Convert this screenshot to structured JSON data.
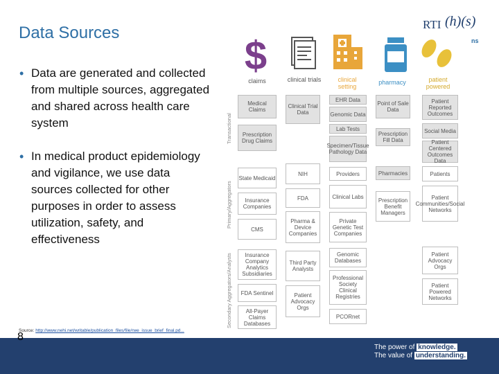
{
  "slide": {
    "title": "Data Sources",
    "logo": {
      "rti": "RTI",
      "hs": "(h)(s)",
      "suffix": "ns"
    },
    "bullets": [
      "Data are generated and collected from multiple sources, aggregated and shared across health care system",
      "In medical product epidemiology and vigilance, we use data sources collected for other purposes in order to assess utilization, safety, and effectiveness"
    ],
    "source_label": "Source:",
    "source_link": "http://www.nehi.net/writable/publication_files/file/rwe_issue_brief_final.pd...",
    "page_number": "8",
    "tagline": {
      "line1_prefix": "The power of",
      "line1_bold": "knowledge.",
      "line2_prefix": "The value of",
      "line2_bold": "understanding."
    }
  },
  "diagram": {
    "columns": [
      {
        "label": "claims",
        "icon": "dollar-icon",
        "color": "#7b3f8c"
      },
      {
        "label": "clinical trials",
        "icon": "document-icon",
        "color": "#555555"
      },
      {
        "label": "clinical setting",
        "icon": "hospital-icon",
        "color": "#e8a63a"
      },
      {
        "label": "pharmacy",
        "icon": "pill-bottle-icon",
        "color": "#3c8fc4"
      },
      {
        "label": "patient powered",
        "icon": "footprints-icon",
        "color": "#e8c13a"
      }
    ],
    "side_labels": [
      "Transactional",
      "Primary/Aggregators",
      "Secondary Aggregators/Analysts"
    ],
    "cells": {
      "claims": [
        "Medical Claims",
        "Prescription Drug Claims",
        "State Medicaid",
        "Insurance Companies",
        "CMS",
        "Insurance Company Analytics Subsidiaries",
        "FDA Sentinel",
        "All-Payer Claims Databases"
      ],
      "trials": [
        "Clinical Trial Data",
        "NIH",
        "FDA",
        "Pharma & Device Companies",
        "Third Party Analysts",
        "Patient Advocacy Orgs"
      ],
      "setting": [
        "EHR Data",
        "Genomic Data",
        "Lab Tests",
        "Specimen/Tissue Pathology Data",
        "Providers",
        "Clinical Labs",
        "Private Genetic Test Companies",
        "Genomic Databases",
        "Professional Society Clinical Registries",
        "PCORnet"
      ],
      "pharmacy": [
        "Point of Sale Data",
        "Prescription Fill Data",
        "Pharmacies",
        "Prescription Benefit Managers"
      ],
      "patient": [
        "Patient Reported Outcomes",
        "Social Media",
        "Patient Centered Outcomes Data",
        "Patients",
        "Patient Communities/Social Networks",
        "Patient Advocacy Orgs",
        "Patient Powered Networks"
      ]
    }
  }
}
